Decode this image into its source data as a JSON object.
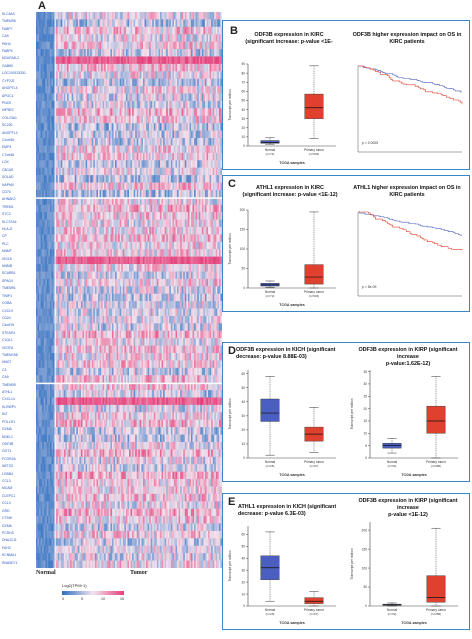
{
  "panel_a": {
    "letter": "A",
    "label_normal": "Normal",
    "label_tumor": "Tumor",
    "legend_title": "Log2(TPM+1)",
    "legend_ticks": [
      "0",
      "5",
      "10",
      "15"
    ],
    "genes": [
      "SLC6A3",
      "TMEM96",
      "FABP7",
      "CA9",
      "PAH4",
      "FABP6",
      "NDUFA4L2",
      "GAB80",
      "LOC100133251",
      "CYP2J2",
      "ANGPTL4",
      "APOC1",
      "PNCK",
      "HIP5E2",
      "COL23A1",
      "SC226",
      "ANGPTL4",
      "C1orf45",
      "EMP4",
      "C7orf48",
      "LOX",
      "C8CAS",
      "SOLAD",
      "NAPM4",
      "CD70",
      "AHNAK2",
      "TREM1",
      "STC2",
      "SLC37A4",
      "HLA-G",
      "CP",
      "PLC",
      "NNMT",
      "ISG15",
      "NNMB",
      "SCARB1",
      "SPAG4",
      "TMEM91",
      "TIMP1",
      "COBA",
      "CXCL9",
      "CD24",
      "C4orf19",
      "STEAP4",
      "C1QL1",
      "VEGFA",
      "TMEM158",
      "NNG7",
      "C3",
      "CA9",
      "TMEM59",
      "ATHL1",
      "CXCL14",
      "KLRWP1",
      "IKZ",
      "POLLR1",
      "GZMA",
      "NDEL1",
      "ODF3B",
      "GGT1",
      "FCGR2A",
      "NETO2",
      "LGBB4",
      "CCL3",
      "MCAM",
      "CLEPC1",
      "CCL3",
      "GRD",
      "CTSW",
      "GZMA",
      "PCDH3",
      "DNAJC11",
      "FAH3",
      "KCNMA1",
      "RNASE71"
    ]
  },
  "panel_b": {
    "letter": "B",
    "left_title_line1": "ODF3B expression in KIRC",
    "left_title_line2": "(significant increase: p-value <1E-",
    "right_title_line1": "ODF3B higher expression impact on OS in",
    "right_title_line2": "KIRC patients",
    "chart_data": {
      "type": "box",
      "categories": [
        "Normal",
        "Primary tumor"
      ],
      "ylabel": "Transcript per million",
      "xlabel": "TCGA samples",
      "ylim": [
        0,
        90
      ],
      "boxes": [
        {
          "category": "Normal",
          "n": "(n=72)",
          "min": 2,
          "q1": 3,
          "median": 4,
          "q3": 6,
          "max": 9,
          "color": "#4a5fc1"
        },
        {
          "category": "Primary tumor",
          "n": "(n=533)",
          "min": 8,
          "q1": 30,
          "median": 42,
          "q3": 57,
          "max": 88,
          "color": "#e0412e"
        }
      ],
      "km_pvalue": "p = 0.0025"
    }
  },
  "panel_c": {
    "letter": "C",
    "left_title_line1": "ATHL1 expression in KIRC",
    "left_title_line2": "(significant increase: p-value <1E-12)",
    "right_title_line1": "ATHL1 higher expression impact on OS in",
    "right_title_line2": "KIRC patients",
    "chart_data": {
      "type": "box",
      "categories": [
        "Normal",
        "Primary tumor"
      ],
      "ylabel": "Transcript per million",
      "xlabel": "TCGA samples",
      "ylim": [
        0,
        200
      ],
      "boxes": [
        {
          "category": "Normal",
          "n": "(n=72)",
          "min": 2,
          "q1": 5,
          "median": 8,
          "q3": 12,
          "max": 18,
          "color": "#4a5fc1"
        },
        {
          "category": "Primary tumor",
          "n": "(n=533)",
          "min": 0,
          "q1": 10,
          "median": 28,
          "q3": 60,
          "max": 195,
          "color": "#e0412e"
        }
      ],
      "km_pvalue": "p = 5e-09"
    }
  },
  "panel_d": {
    "letter": "D",
    "left_title_line1": "ODF3B expression in KICH (significant",
    "left_title_line2": "decrease: p-value 8.88E-03)",
    "right_title_line1": "ODF3B expression in KIRP (significant increase",
    "right_title_line2": "p-value:1.62E-12)",
    "chart_data": [
      {
        "type": "box",
        "categories": [
          "Normal",
          "Primary tumor"
        ],
        "ylabel": "Transcript per million",
        "xlabel": "TCGA samples",
        "boxes": [
          {
            "category": "Normal",
            "n": "(n=25)",
            "min": 2,
            "q1": 26,
            "median": 32,
            "q3": 42,
            "max": 58,
            "color": "#4a5fc1"
          },
          {
            "category": "Primary tumor",
            "n": "(n=67)",
            "min": 4,
            "q1": 12,
            "median": 17,
            "q3": 22,
            "max": 36,
            "color": "#e0412e"
          }
        ]
      },
      {
        "type": "box",
        "categories": [
          "Normal",
          "Primary tumor"
        ],
        "ylabel": "Transcript per million",
        "xlabel": "TCGA samples",
        "boxes": [
          {
            "category": "Normal",
            "n": "(n=32)",
            "min": 2,
            "q1": 4,
            "median": 5,
            "q3": 6,
            "max": 8,
            "color": "#4a5fc1"
          },
          {
            "category": "Primary tumor",
            "n": "(n=286)",
            "min": 0,
            "q1": 10,
            "median": 15,
            "q3": 21,
            "max": 33,
            "color": "#e0412e"
          }
        ]
      }
    ]
  },
  "panel_e": {
    "letter": "E",
    "left_title_line1": "ATHL1 expression in KICH (significant",
    "left_title_line2": "decrease: p-value 6.3E-03)",
    "right_title_line1": "ODF3B expression in KIRP (significant increase",
    "right_title_line2": "p-value <1E-12)",
    "chart_data": [
      {
        "type": "box",
        "categories": [
          "Normal",
          "Primary tumor"
        ],
        "ylabel": "Transcript per million",
        "xlabel": "TCGA samples",
        "boxes": [
          {
            "category": "Normal",
            "n": "(n=25)",
            "min": 4,
            "q1": 22,
            "median": 32,
            "q3": 42,
            "max": 62,
            "color": "#4a5fc1"
          },
          {
            "category": "Primary tumor",
            "n": "(n=67)",
            "min": 0,
            "q1": 2,
            "median": 4,
            "q3": 7,
            "max": 12,
            "color": "#e0412e"
          }
        ]
      },
      {
        "type": "box",
        "categories": [
          "Normal",
          "Primary tumor"
        ],
        "ylabel": "Transcript per million",
        "xlabel": "TCGA samples",
        "boxes": [
          {
            "category": "Normal",
            "n": "(n=32)",
            "min": 0,
            "q1": 2,
            "median": 3,
            "q3": 5,
            "max": 8,
            "color": "#4a5fc1"
          },
          {
            "category": "Primary tumor",
            "n": "(n=286)",
            "min": 0,
            "q1": 10,
            "median": 22,
            "q3": 80,
            "max": 205,
            "color": "#e0412e"
          }
        ]
      }
    ]
  },
  "colors": {
    "low": "#2d6fc0",
    "mid": "#f3e4ee",
    "high": "#e43d78",
    "panel_border": "#3a86c8",
    "normal_box": "#4a5fc1",
    "tumor_box": "#e0412e"
  }
}
